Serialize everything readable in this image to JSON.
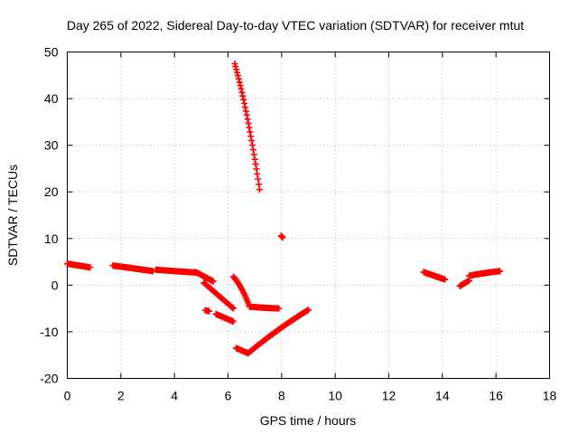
{
  "chart_data": {
    "type": "scatter",
    "title": "Day 265 of 2022, Sidereal Day-to-day VTEC variation (SDTVAR) for receiver mtut",
    "xlabel": "GPS time / hours",
    "ylabel": "SDTVAR / TECUs",
    "xlim": [
      0,
      18
    ],
    "ylim": [
      -20,
      50
    ],
    "xticks": [
      0,
      2,
      4,
      6,
      8,
      10,
      12,
      14,
      16,
      18
    ],
    "yticks": [
      -20,
      -10,
      0,
      10,
      20,
      30,
      40,
      50
    ],
    "xtick_labels": [
      "0",
      "2",
      "4",
      "6",
      "8",
      "10",
      "12",
      "14",
      "16",
      "18"
    ],
    "ytick_labels": [
      "-20",
      "-10",
      "0",
      "10",
      "20",
      "30",
      "40",
      "50"
    ],
    "grid": true,
    "marker": "+",
    "color": "#ff0000",
    "segments": [
      {
        "x0": 0.0,
        "x1": 0.85,
        "y0": 4.6,
        "y1": 3.8,
        "curve": 0
      },
      {
        "x0": 1.7,
        "x1": 3.2,
        "y0": 4.2,
        "y1": 3.0,
        "curve": 0
      },
      {
        "x0": 3.3,
        "x1": 4.8,
        "y0": 3.3,
        "y1": 2.7,
        "curve": 0
      },
      {
        "x0": 4.8,
        "x1": 5.45,
        "y0": 2.8,
        "y1": 0.8,
        "curve": 0
      },
      {
        "x0": 5.1,
        "x1": 6.2,
        "y0": 0.5,
        "y1": -5.0,
        "curve": 0
      },
      {
        "x0": 5.15,
        "x1": 5.3,
        "y0": -5.4,
        "y1": -5.6,
        "curve": 0
      },
      {
        "x0": 5.55,
        "x1": 6.2,
        "y0": -6.2,
        "y1": -7.8,
        "curve": 0
      },
      {
        "x0": 6.2,
        "x1": 6.8,
        "y0": 1.8,
        "y1": -4.5,
        "curve": 0.4
      },
      {
        "x0": 6.8,
        "x1": 7.9,
        "y0": -4.6,
        "y1": -5.0,
        "curve": -0.5
      },
      {
        "x0": 6.25,
        "x1": 7.18,
        "y0": 47.5,
        "y1": 20.5,
        "curve": 0.3
      },
      {
        "x0": 7.98,
        "x1": 8.04,
        "y0": 10.6,
        "y1": 10.2,
        "curve": 0
      },
      {
        "x0": 6.3,
        "x1": 6.75,
        "y0": -13.5,
        "y1": -14.6,
        "curve": 0
      },
      {
        "x0": 6.75,
        "x1": 9.0,
        "y0": -14.6,
        "y1": -5.3,
        "curve": -0.15
      },
      {
        "x0": 13.3,
        "x1": 14.1,
        "y0": 2.8,
        "y1": 1.2,
        "curve": 0
      },
      {
        "x0": 14.65,
        "x1": 15.0,
        "y0": -0.2,
        "y1": 1.0,
        "curve": 0
      },
      {
        "x0": 15.0,
        "x1": 16.15,
        "y0": 2.0,
        "y1": 3.0,
        "curve": -0.3
      }
    ]
  }
}
